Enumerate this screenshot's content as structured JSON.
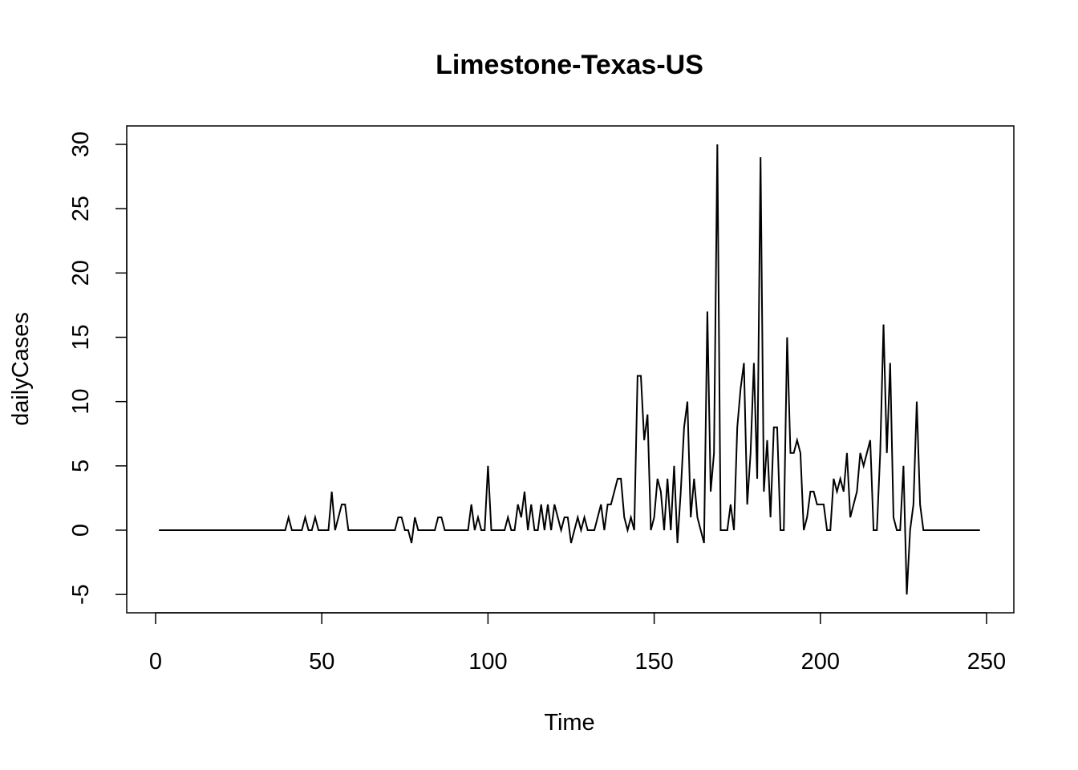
{
  "chart_data": {
    "type": "line",
    "title": "Limestone-Texas-US",
    "xlabel": "Time",
    "ylabel": "dailyCases",
    "xlim": [
      1,
      248
    ],
    "ylim": [
      -5,
      30
    ],
    "xticks": [
      0,
      50,
      100,
      150,
      200,
      250
    ],
    "yticks": [
      -5,
      0,
      5,
      10,
      15,
      20,
      25,
      30
    ],
    "grid": false,
    "legend": "none",
    "line_color": "#000000",
    "x_start": 1,
    "values": [
      0,
      0,
      0,
      0,
      0,
      0,
      0,
      0,
      0,
      0,
      0,
      0,
      0,
      0,
      0,
      0,
      0,
      0,
      0,
      0,
      0,
      0,
      0,
      0,
      0,
      0,
      0,
      0,
      0,
      0,
      0,
      0,
      0,
      0,
      0,
      0,
      0,
      0,
      0,
      1,
      0,
      0,
      0,
      0,
      1,
      0,
      0,
      1,
      0,
      0,
      0,
      0,
      3,
      0,
      1,
      2,
      2,
      0,
      0,
      0,
      0,
      0,
      0,
      0,
      0,
      0,
      0,
      0,
      0,
      0,
      0,
      0,
      1,
      1,
      0,
      0,
      -1,
      1,
      0,
      0,
      0,
      0,
      0,
      0,
      1,
      1,
      0,
      0,
      0,
      0,
      0,
      0,
      0,
      0,
      2,
      0,
      1,
      0,
      0,
      5,
      0,
      0,
      0,
      0,
      0,
      1,
      0,
      0,
      2,
      1,
      3,
      0,
      2,
      0,
      0,
      2,
      0,
      2,
      0,
      2,
      1,
      0,
      1,
      1,
      -1,
      0,
      1,
      0,
      1,
      0,
      0,
      0,
      1,
      2,
      0,
      2,
      2,
      3,
      4,
      4,
      1,
      0,
      1,
      0,
      12,
      12,
      7,
      9,
      0,
      1,
      4,
      3,
      0,
      4,
      0,
      5,
      -1,
      3,
      8,
      10,
      1,
      4,
      1,
      0,
      -1,
      17,
      3,
      6,
      30,
      0,
      0,
      0,
      2,
      0,
      8,
      11,
      13,
      2,
      6,
      13,
      4,
      29,
      3,
      7,
      1,
      8,
      8,
      0,
      0,
      15,
      6,
      6,
      7,
      6,
      0,
      1,
      3,
      3,
      2,
      2,
      2,
      0,
      0,
      4,
      3,
      4,
      3,
      6,
      1,
      2,
      3,
      6,
      5,
      6,
      7,
      0,
      0,
      6,
      16,
      6,
      13,
      1,
      0,
      0,
      5,
      -5,
      0,
      2,
      10,
      2,
      0,
      0,
      0,
      0,
      0,
      0,
      0,
      0,
      0,
      0,
      0,
      0,
      0,
      0,
      0,
      0,
      0,
      0
    ]
  }
}
